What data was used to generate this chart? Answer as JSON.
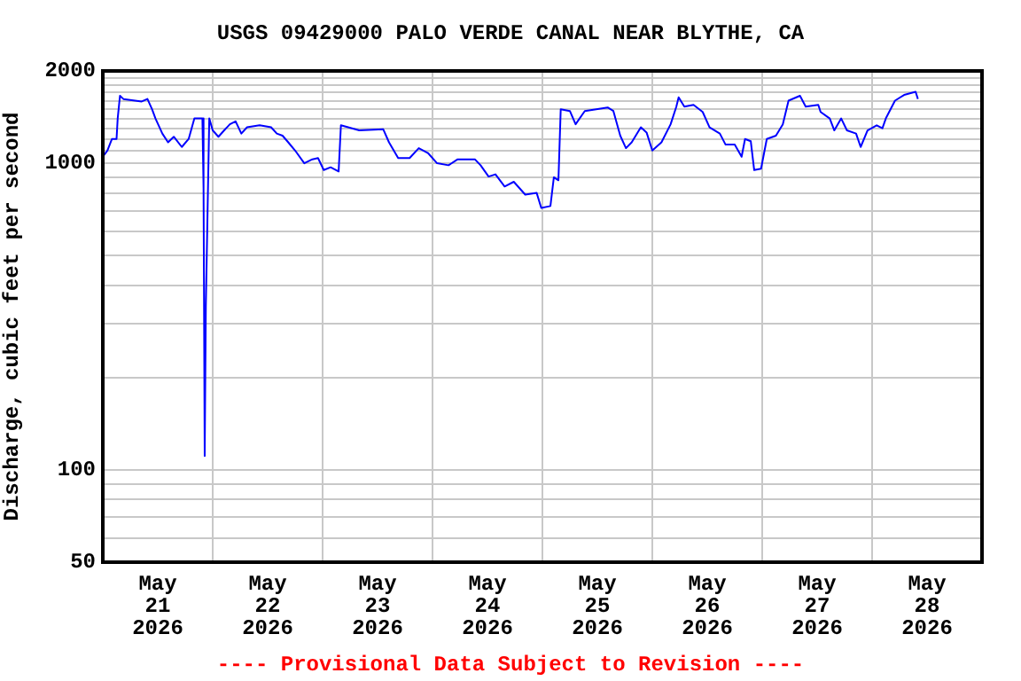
{
  "chart_data": {
    "type": "line",
    "title": "USGS 09429000 PALO VERDE CANAL NEAR BLYTHE, CA",
    "ylabel": "Discharge, cubic feet per second",
    "annotations": [
      "---- Provisional Data Subject to Revision ----"
    ],
    "log": true,
    "grid": true,
    "legend": false,
    "marker": "none",
    "line_style": "solid",
    "xlim": [
      "2026-05-21T00:00",
      "2026-05-29T00:00"
    ],
    "xticks": [
      {
        "value": "2026-05-21T00:00",
        "label": null
      },
      {
        "value": "2026-05-21T12:00",
        "label": "May\n21\n2026"
      },
      {
        "value": "2026-05-22T00:00",
        "label": null
      },
      {
        "value": "2026-05-22T12:00",
        "label": "May\n22\n2026"
      },
      {
        "value": "2026-05-23T00:00",
        "label": null
      },
      {
        "value": "2026-05-23T12:00",
        "label": "May\n23\n2026"
      },
      {
        "value": "2026-05-24T00:00",
        "label": null
      },
      {
        "value": "2026-05-24T12:00",
        "label": "May\n24\n2026"
      },
      {
        "value": "2026-05-25T00:00",
        "label": null
      },
      {
        "value": "2026-05-25T12:00",
        "label": "May\n25\n2026"
      },
      {
        "value": "2026-05-26T00:00",
        "label": null
      },
      {
        "value": "2026-05-26T12:00",
        "label": "May\n26\n2026"
      },
      {
        "value": "2026-05-27T00:00",
        "label": null
      },
      {
        "value": "2026-05-27T12:00",
        "label": "May\n27\n2026"
      },
      {
        "value": "2026-05-28T00:00",
        "label": null
      },
      {
        "value": "2026-05-28T12:00",
        "label": "May\n28\n2026"
      },
      {
        "value": "2026-05-29T00:00",
        "label": null
      }
    ],
    "ylim": [
      50,
      2000
    ],
    "yticks": [
      50,
      {
        "value": 60,
        "label": null
      },
      {
        "value": 70,
        "label": null
      },
      {
        "value": 80,
        "label": null
      },
      {
        "value": 90,
        "label": null
      },
      100,
      {
        "value": 200,
        "label": null
      },
      {
        "value": 300,
        "label": null
      },
      {
        "value": 400,
        "label": null
      },
      {
        "value": 500,
        "label": null
      },
      {
        "value": 600,
        "label": null
      },
      {
        "value": 700,
        "label": null
      },
      {
        "value": 800,
        "label": null
      },
      {
        "value": 900,
        "label": null
      },
      1000,
      {
        "value": 1100,
        "label": null
      },
      {
        "value": 1200,
        "label": null
      },
      {
        "value": 1300,
        "label": null
      },
      {
        "value": 1400,
        "label": null
      },
      {
        "value": 1500,
        "label": null
      },
      {
        "value": 1600,
        "label": null
      },
      {
        "value": 1700,
        "label": null
      },
      {
        "value": 1800,
        "label": null
      },
      {
        "value": 1900,
        "label": null
      },
      2000
    ],
    "series": [
      {
        "color": "#0000ff",
        "x": [
          "2026-05-21T00:00",
          "2026-05-21T01:00",
          "2026-05-21T02:00",
          "2026-05-21T03:00",
          "2026-05-21T03:15",
          "2026-05-21T03:45",
          "2026-05-21T04:30",
          "2026-05-21T08:30",
          "2026-05-21T09:45",
          "2026-05-21T10:45",
          "2026-05-21T11:30",
          "2026-05-21T13:00",
          "2026-05-21T14:15",
          "2026-05-21T15:30",
          "2026-05-21T17:15",
          "2026-05-21T18:45",
          "2026-05-21T20:00",
          "2026-05-21T21:45",
          "2026-05-21T22:00",
          "2026-05-21T22:15",
          "2026-05-21T22:30",
          "2026-05-21T23:15",
          "2026-05-22T00:00",
          "2026-05-22T01:15",
          "2026-05-22T02:30",
          "2026-05-22T03:45",
          "2026-05-22T05:00",
          "2026-05-22T06:15",
          "2026-05-22T07:30",
          "2026-05-22T10:15",
          "2026-05-22T12:45",
          "2026-05-22T14:00",
          "2026-05-22T15:15",
          "2026-05-22T16:30",
          "2026-05-22T18:00",
          "2026-05-22T20:00",
          "2026-05-22T21:45",
          "2026-05-22T23:00",
          "2026-05-23T00:15",
          "2026-05-23T01:45",
          "2026-05-23T03:30",
          "2026-05-23T04:00",
          "2026-05-23T08:00",
          "2026-05-23T13:15",
          "2026-05-23T14:30",
          "2026-05-23T16:30",
          "2026-05-23T19:00",
          "2026-05-23T21:00",
          "2026-05-23T23:00",
          "2026-05-24T01:00",
          "2026-05-24T03:30",
          "2026-05-24T05:30",
          "2026-05-24T09:15",
          "2026-05-24T10:30",
          "2026-05-24T12:15",
          "2026-05-24T13:45",
          "2026-05-24T15:45",
          "2026-05-24T17:45",
          "2026-05-24T20:15",
          "2026-05-24T22:45",
          "2026-05-24T23:45",
          "2026-05-25T01:45",
          "2026-05-25T02:30",
          "2026-05-25T03:30",
          "2026-05-25T04:00",
          "2026-05-25T06:00",
          "2026-05-25T07:15",
          "2026-05-25T09:15",
          "2026-05-25T14:15",
          "2026-05-25T15:30",
          "2026-05-25T17:00",
          "2026-05-25T18:15",
          "2026-05-25T19:30",
          "2026-05-25T21:30",
          "2026-05-25T22:45",
          "2026-05-26T00:00",
          "2026-05-26T02:00",
          "2026-05-26T04:00",
          "2026-05-26T05:15",
          "2026-05-26T05:45",
          "2026-05-26T07:00",
          "2026-05-26T09:00",
          "2026-05-26T11:00",
          "2026-05-26T12:30",
          "2026-05-26T14:45",
          "2026-05-26T16:00",
          "2026-05-26T18:00",
          "2026-05-26T19:30",
          "2026-05-26T20:15",
          "2026-05-26T21:30",
          "2026-05-26T22:15",
          "2026-05-26T23:45",
          "2026-05-27T01:00",
          "2026-05-27T03:00",
          "2026-05-27T04:30",
          "2026-05-27T05:45",
          "2026-05-27T08:15",
          "2026-05-27T09:30",
          "2026-05-27T12:15",
          "2026-05-27T12:45",
          "2026-05-27T14:45",
          "2026-05-27T15:45",
          "2026-05-27T17:15",
          "2026-05-27T18:30",
          "2026-05-27T20:30",
          "2026-05-27T21:30",
          "2026-05-27T23:00",
          "2026-05-28T01:00",
          "2026-05-28T02:15",
          "2026-05-28T03:00",
          "2026-05-28T05:00",
          "2026-05-28T07:00",
          "2026-05-28T09:30",
          "2026-05-28T10:00"
        ],
        "values": [
          1050,
          1100,
          1200,
          1200,
          1400,
          1660,
          1620,
          1590,
          1620,
          1500,
          1400,
          1250,
          1170,
          1220,
          1130,
          1200,
          1400,
          1400,
          830,
          111,
          342,
          1400,
          1280,
          1220,
          1280,
          1340,
          1370,
          1250,
          1310,
          1330,
          1310,
          1250,
          1230,
          1170,
          1100,
          1000,
          1030,
          1040,
          950,
          970,
          940,
          1330,
          1280,
          1290,
          1170,
          1040,
          1040,
          1120,
          1080,
          1000,
          985,
          1030,
          1030,
          985,
          905,
          920,
          840,
          870,
          790,
          800,
          715,
          725,
          900,
          880,
          1500,
          1480,
          1340,
          1480,
          1520,
          1480,
          1230,
          1120,
          1170,
          1310,
          1260,
          1100,
          1170,
          1340,
          1530,
          1640,
          1530,
          1550,
          1470,
          1310,
          1250,
          1150,
          1150,
          1050,
          1200,
          1180,
          950,
          960,
          1200,
          1230,
          1340,
          1600,
          1660,
          1530,
          1550,
          1470,
          1400,
          1280,
          1400,
          1280,
          1250,
          1130,
          1280,
          1330,
          1300,
          1400,
          1600,
          1670,
          1710,
          1620
        ]
      }
    ]
  }
}
